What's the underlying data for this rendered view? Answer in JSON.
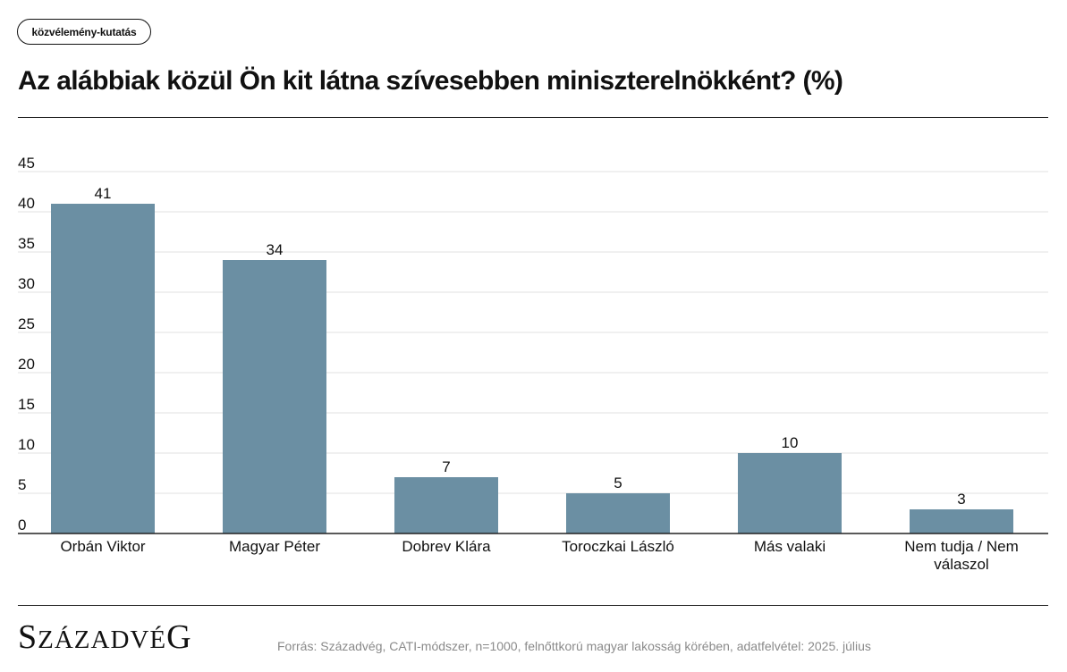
{
  "header": {
    "tag": "közvélemény-kutatás",
    "title": "Az alábbiak közül Ön kit látna szívesebben miniszterelnökként? (%)"
  },
  "chart_data": {
    "type": "bar",
    "categories": [
      "Orbán Viktor",
      "Magyar Péter",
      "Dobrev Klára",
      "Toroczkai László",
      "Más valaki",
      "Nem tudja / Nem válaszol"
    ],
    "category_lines": [
      [
        "Orbán Viktor"
      ],
      [
        "Magyar Péter"
      ],
      [
        "Dobrev Klára"
      ],
      [
        "Toroczkai László"
      ],
      [
        "Más valaki"
      ],
      [
        "Nem tudja / Nem",
        "válaszol"
      ]
    ],
    "values": [
      41,
      34,
      7,
      5,
      10,
      3
    ],
    "title": "",
    "xlabel": "",
    "ylabel": "",
    "ylim": [
      0,
      45
    ],
    "yticks": [
      "0",
      "5",
      "10",
      "15",
      "20",
      "25",
      "30",
      "35",
      "40",
      "45"
    ],
    "grid": true,
    "bar_color": "#6b8fa3",
    "data_labels": [
      "41",
      "34",
      "7",
      "5",
      "10",
      "3"
    ]
  },
  "footer": {
    "brand": "Századvég",
    "source": "Forrás: Századvég, CATI-módszer, n=1000, felnőttkorú magyar lakosság körében, adatfelvétel: 2025. július"
  }
}
